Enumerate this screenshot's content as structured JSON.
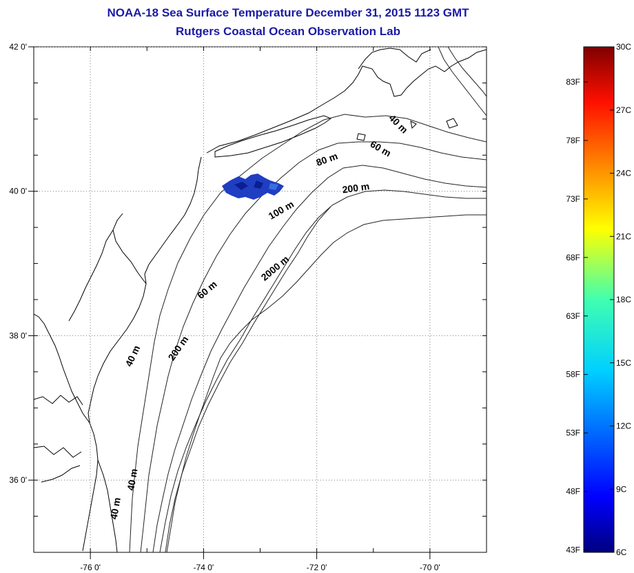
{
  "header": {
    "title": "NOAA-18 Sea Surface Temperature December 31, 2015 1123 GMT",
    "subtitle": "Rutgers Coastal Ocean Observation Lab"
  },
  "map": {
    "lon_range": [
      -77,
      -69
    ],
    "lat_range": [
      35,
      42
    ],
    "lon_ticks": [
      {
        "value": -76,
        "label": "-76 0'"
      },
      {
        "value": -74,
        "label": "-74 0'"
      },
      {
        "value": -72,
        "label": "-72 0'"
      },
      {
        "value": -70,
        "label": "-70 0'"
      }
    ],
    "lat_ticks": [
      {
        "value": 42,
        "label": "42 0'"
      },
      {
        "value": 40,
        "label": "40 0'"
      },
      {
        "value": 38,
        "label": "38 0'"
      },
      {
        "value": 36,
        "label": "36 0'"
      }
    ],
    "grid": "dotted",
    "contour_labels": [
      {
        "text": "40 m",
        "lon": -70.6,
        "lat": 40.9,
        "angle": 45
      },
      {
        "text": "60 m",
        "lon": -70.9,
        "lat": 40.55,
        "angle": 30
      },
      {
        "text": "80 m",
        "lon": -71.8,
        "lat": 40.4,
        "angle": -20
      },
      {
        "text": "200 m",
        "lon": -71.3,
        "lat": 40.0,
        "angle": -8
      },
      {
        "text": "100 m",
        "lon": -72.6,
        "lat": 39.7,
        "angle": -30
      },
      {
        "text": "2000 m",
        "lon": -72.7,
        "lat": 38.9,
        "angle": -40
      },
      {
        "text": "60 m",
        "lon": -73.9,
        "lat": 38.6,
        "angle": -40
      },
      {
        "text": "200 m",
        "lon": -74.4,
        "lat": 37.8,
        "angle": -55
      },
      {
        "text": "40 m",
        "lon": -75.2,
        "lat": 37.7,
        "angle": -65
      },
      {
        "text": "40 m",
        "lon": -75.5,
        "lat": 35.6,
        "angle": -80
      },
      {
        "text": "40 m",
        "lon": -75.2,
        "lat": 36.0,
        "angle": -80
      }
    ],
    "sst_patch": {
      "location": "NY Bight",
      "color": "#1f3ec2"
    }
  },
  "colorbar": {
    "range_c": [
      6,
      30
    ],
    "celsius_ticks": [
      {
        "value": 30,
        "label": "30C"
      },
      {
        "value": 27,
        "label": "27C"
      },
      {
        "value": 24,
        "label": "24C"
      },
      {
        "value": 21,
        "label": "21C"
      },
      {
        "value": 18,
        "label": "18C"
      },
      {
        "value": 15,
        "label": "15C"
      },
      {
        "value": 12,
        "label": "12C"
      },
      {
        "value": 9,
        "label": "9C"
      },
      {
        "value": 6,
        "label": "6C"
      }
    ],
    "fahrenheit_ticks": [
      {
        "value": 83,
        "label": "83F"
      },
      {
        "value": 78,
        "label": "78F"
      },
      {
        "value": 73,
        "label": "73F"
      },
      {
        "value": 68,
        "label": "68F"
      },
      {
        "value": 63,
        "label": "63F"
      },
      {
        "value": 58,
        "label": "58F"
      },
      {
        "value": 53,
        "label": "53F"
      },
      {
        "value": 48,
        "label": "48F"
      },
      {
        "value": 43,
        "label": "43F"
      }
    ]
  }
}
